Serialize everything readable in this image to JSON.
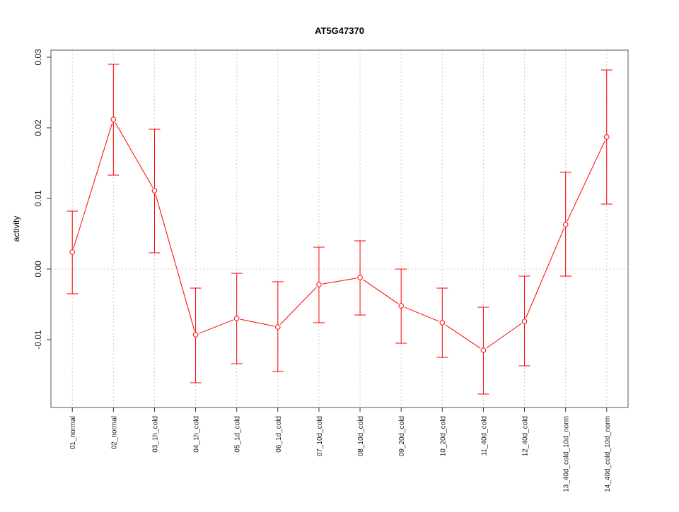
{
  "chart_data": {
    "type": "line",
    "title": "AT5G47370",
    "xlabel": "",
    "ylabel": "activity",
    "ylim": [
      -0.0196,
      0.031
    ],
    "yticks": [
      -0.01,
      0.0,
      0.01,
      0.02,
      0.03
    ],
    "ytick_labels": [
      "-0.01",
      "0.00",
      "0.01",
      "0.02",
      "0.03"
    ],
    "grid": true,
    "categories": [
      "01_normal",
      "02_normal",
      "03_1h_cold",
      "04_1h_cold",
      "05_1d_cold",
      "06_1d_cold",
      "07_10d_cold",
      "08_10d_cold",
      "09_20d_cold",
      "10_20d_cold",
      "11_40d_cold",
      "12_40d_cold",
      "13_40d_cold_10d_norm",
      "14_40d_cold_10d_norm"
    ],
    "series": [
      {
        "name": "activity",
        "color": "#ff0000",
        "values": [
          0.0024,
          0.0212,
          0.0111,
          -0.0093,
          -0.007,
          -0.0082,
          -0.0022,
          -0.0012,
          -0.0052,
          -0.0076,
          -0.0115,
          -0.0074,
          0.0063,
          0.0187
        ],
        "upper": [
          0.0082,
          0.029,
          0.0198,
          -0.0027,
          -0.0006,
          -0.0018,
          0.0031,
          0.004,
          0.0,
          -0.0027,
          -0.0054,
          -0.001,
          0.0137,
          0.0282
        ],
        "lower": [
          -0.0035,
          0.0133,
          0.0023,
          -0.0161,
          -0.0134,
          -0.0145,
          -0.0076,
          -0.0065,
          -0.0105,
          -0.0125,
          -0.0177,
          -0.0137,
          -0.001,
          0.0092
        ]
      }
    ]
  }
}
